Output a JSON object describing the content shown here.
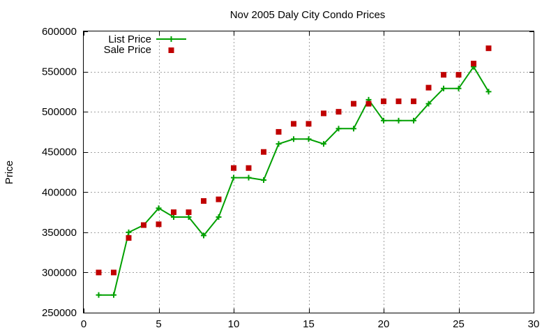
{
  "chart_data": {
    "type": "line",
    "title": "Nov 2005 Daly City Condo Prices",
    "xlabel": "",
    "ylabel": "Price",
    "xlim": [
      0,
      30
    ],
    "ylim": [
      250000,
      600000
    ],
    "grid": true,
    "legend_position": "top-left",
    "x_ticks": [
      "0",
      "5",
      "10",
      "15",
      "20",
      "25",
      "30"
    ],
    "y_ticks": [
      "250000",
      "300000",
      "350000",
      "400000",
      "450000",
      "500000",
      "550000",
      "600000"
    ],
    "series": [
      {
        "name": "List Price",
        "style": "linespoints",
        "color": "#00a000",
        "x": [
          1,
          2,
          3,
          4,
          5,
          6,
          7,
          8,
          9,
          10,
          11,
          12,
          13,
          14,
          15,
          16,
          17,
          18,
          19,
          20,
          21,
          22,
          23,
          24,
          25,
          26,
          27
        ],
        "y": [
          272000,
          272000,
          350000,
          359000,
          380000,
          369000,
          369000,
          346000,
          369000,
          418000,
          418000,
          415000,
          460000,
          466000,
          466000,
          460000,
          479000,
          479000,
          515000,
          489000,
          489000,
          489000,
          510000,
          529000,
          529000,
          556000,
          525000
        ]
      },
      {
        "name": "Sale Price",
        "style": "points",
        "color": "#c00000",
        "x": [
          1,
          2,
          3,
          4,
          5,
          6,
          7,
          8,
          9,
          10,
          11,
          12,
          13,
          14,
          15,
          16,
          17,
          18,
          19,
          20,
          21,
          22,
          23,
          24,
          25,
          26,
          27
        ],
        "y": [
          300000,
          300000,
          343000,
          359000,
          360000,
          375000,
          375000,
          389000,
          391000,
          430000,
          430000,
          450000,
          475000,
          485000,
          485000,
          498000,
          500000,
          510000,
          510000,
          513000,
          513000,
          513000,
          530000,
          546000,
          546000,
          560000,
          579000
        ]
      }
    ]
  }
}
